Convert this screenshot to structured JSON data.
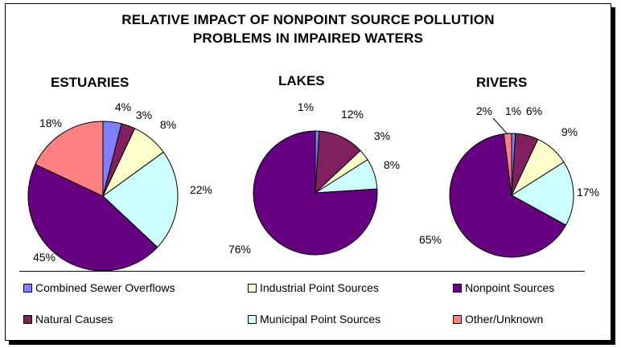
{
  "title_lines": [
    "RELATIVE IMPACT OF NONPOINT SOURCE POLLUTION",
    "PROBLEMS IN IMPAIRED WATERS"
  ],
  "colors": {
    "Combined Sewer Overflows": "#8080ff",
    "Natural Causes": "#802060",
    "Industrial Point Sources": "#ffffcc",
    "Municipal Point Sources": "#ccffff",
    "Nonpoint Sources": "#660080",
    "Other/Unknown": "#ff8080"
  },
  "legend": [
    "Combined Sewer Overflows",
    "Industrial Point Sources",
    "Nonpoint Sources",
    "Natural Causes",
    "Municipal Point Sources",
    "Other/Unknown"
  ],
  "chart_data": [
    {
      "type": "pie",
      "title": "ESTUARIES",
      "slices": [
        {
          "label": "Combined Sewer Overflows",
          "value": 4,
          "text": "4%"
        },
        {
          "label": "Natural Causes",
          "value": 3,
          "text": "3%"
        },
        {
          "label": "Industrial Point Sources",
          "value": 8,
          "text": "8%"
        },
        {
          "label": "Municipal Point Sources",
          "value": 22,
          "text": "22%"
        },
        {
          "label": "Nonpoint Sources",
          "value": 45,
          "text": "45%"
        },
        {
          "label": "Other/Unknown",
          "value": 18,
          "text": "18%"
        }
      ]
    },
    {
      "type": "pie",
      "title": "LAKES",
      "slices": [
        {
          "label": "Combined Sewer Overflows",
          "value": 1,
          "text": "1%"
        },
        {
          "label": "Natural Causes",
          "value": 12,
          "text": "12%"
        },
        {
          "label": "Industrial Point Sources",
          "value": 3,
          "text": "3%"
        },
        {
          "label": "Municipal Point Sources",
          "value": 8,
          "text": "8%"
        },
        {
          "label": "Nonpoint Sources",
          "value": 76,
          "text": "76%"
        }
      ]
    },
    {
      "type": "pie",
      "title": "RIVERS",
      "slices": [
        {
          "label": "Combined Sewer Overflows",
          "value": 1,
          "text": "1%"
        },
        {
          "label": "Natural Causes",
          "value": 6,
          "text": "6%"
        },
        {
          "label": "Industrial Point Sources",
          "value": 9,
          "text": "9%"
        },
        {
          "label": "Municipal Point Sources",
          "value": 17,
          "text": "17%"
        },
        {
          "label": "Nonpoint Sources",
          "value": 65,
          "text": "65%"
        },
        {
          "label": "Other/Unknown",
          "value": 2,
          "text": "2%"
        }
      ]
    }
  ]
}
